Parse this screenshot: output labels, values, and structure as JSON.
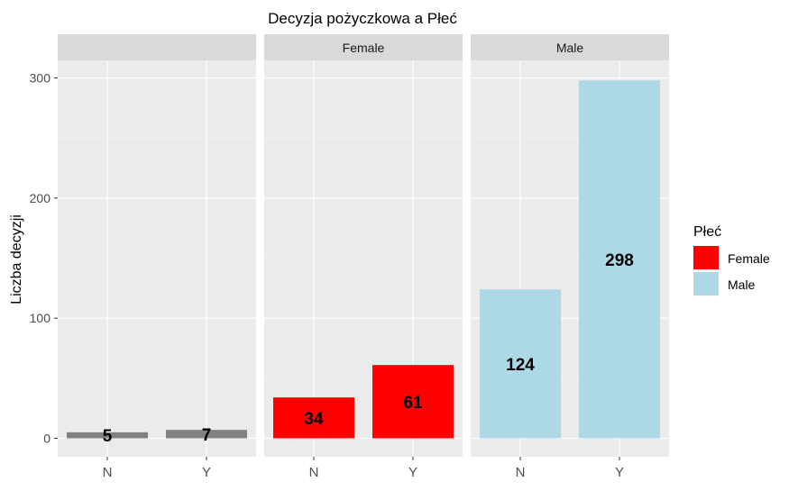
{
  "chart_data": {
    "type": "bar",
    "title": "Decyzja pożyczkowa a Płeć",
    "xlabel": "",
    "ylabel": "Liczba decyzji",
    "ylim": [
      0,
      320
    ],
    "yticks": [
      0,
      100,
      200,
      300
    ],
    "categories": [
      "N",
      "Y"
    ],
    "facets": [
      {
        "label": "",
        "color": "#808080",
        "values": [
          5,
          7
        ]
      },
      {
        "label": "Female",
        "color": "#FF0000",
        "values": [
          34,
          61
        ]
      },
      {
        "label": "Male",
        "color": "#ADD8E6",
        "values": [
          124,
          298
        ]
      }
    ],
    "legend": {
      "title": "Płeć",
      "position": "right",
      "items": [
        {
          "label": "Female",
          "color": "#FF0000"
        },
        {
          "label": "Male",
          "color": "#ADD8E6"
        }
      ]
    },
    "grid": true
  }
}
